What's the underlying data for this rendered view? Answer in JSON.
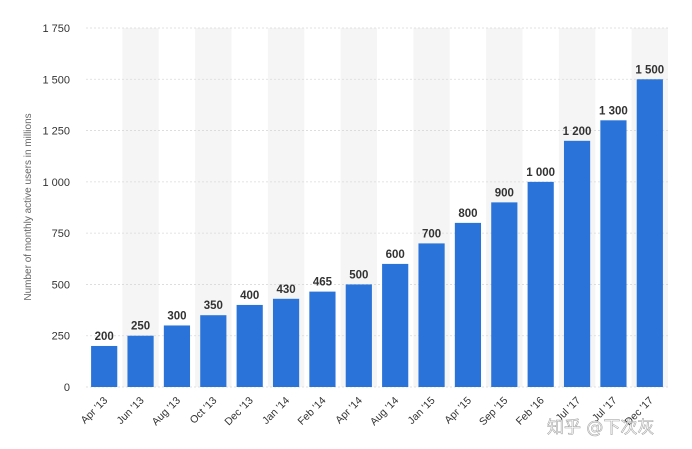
{
  "chart_data": {
    "type": "bar",
    "categories": [
      "Apr '13",
      "Jun '13",
      "Aug '13",
      "Oct '13",
      "Dec '13",
      "Jan '14",
      "Feb '14",
      "Apr '14",
      "Aug '14",
      "Jan '15",
      "Apr '15",
      "Sep '15",
      "Feb '16",
      "Jul '17",
      "Jul '17",
      "Dec '17"
    ],
    "values": [
      200,
      250,
      300,
      350,
      400,
      430,
      465,
      500,
      600,
      700,
      800,
      900,
      1000,
      1200,
      1300,
      1500
    ],
    "value_labels": [
      "200",
      "250",
      "300",
      "350",
      "400",
      "430",
      "465",
      "500",
      "600",
      "700",
      "800",
      "900",
      "1 000",
      "1 200",
      "1 300",
      "1 500"
    ],
    "title": "",
    "xlabel": "",
    "ylabel": "Number of monthly active users in millions",
    "ylim": [
      0,
      1750
    ],
    "yticks": [
      0,
      250,
      500,
      750,
      1000,
      1250,
      1500,
      1750
    ],
    "ytick_labels": [
      "0",
      "250",
      "500",
      "750",
      "1 000",
      "1 250",
      "1 500",
      "1 750"
    ],
    "grid": true,
    "bar_color": "#2a74d9",
    "band_color": "#f5f5f5"
  },
  "watermark": {
    "text": "知乎 @下次灰"
  }
}
